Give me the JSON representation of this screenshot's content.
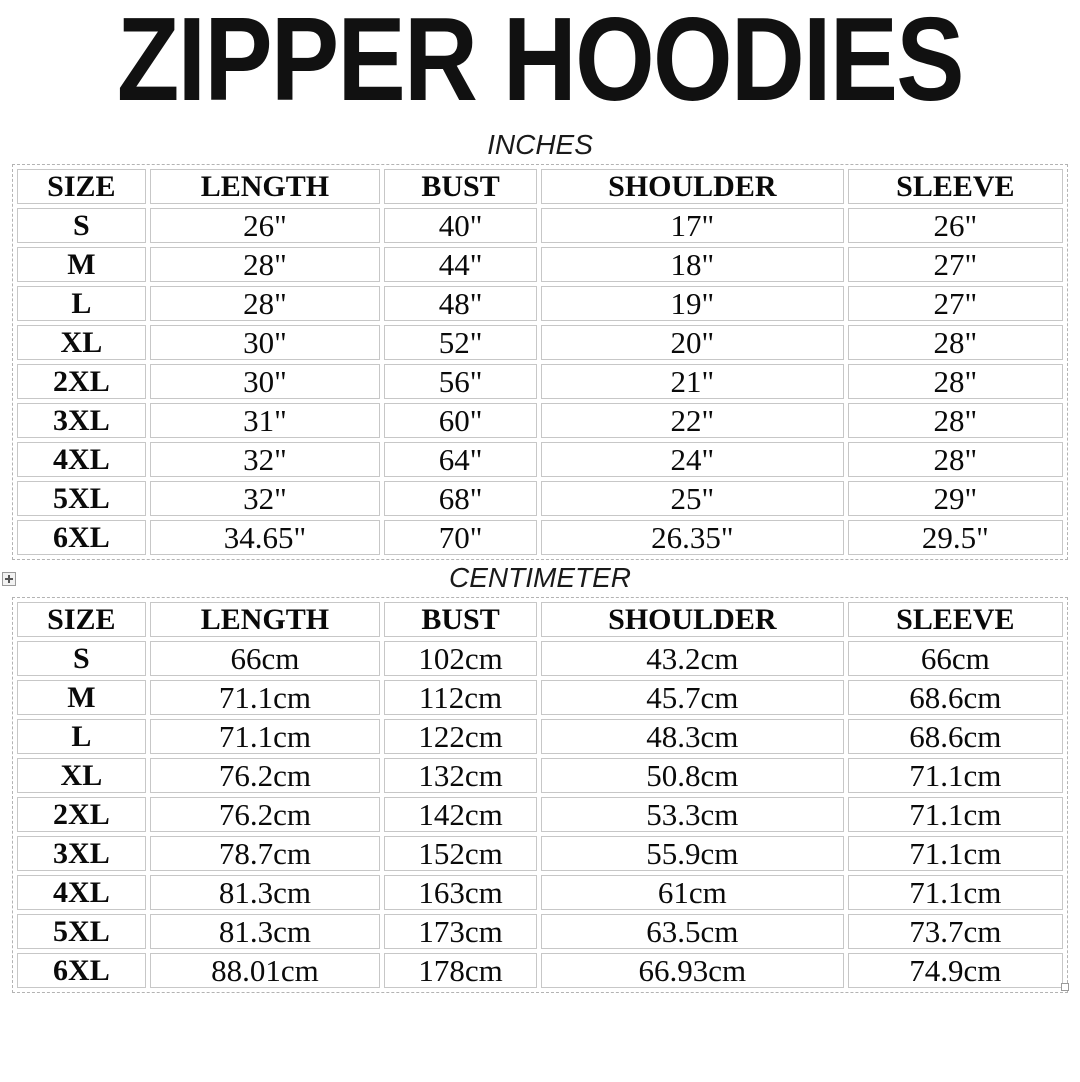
{
  "page": {
    "title": "ZIPPER HOODIES"
  },
  "colors": {
    "background": "#ffffff",
    "text": "#0a0a0a",
    "cell_border": "#c7c7c7",
    "table_dashed_border": "#b3b3b3"
  },
  "icons": {
    "table_move_handle": "plus-cross",
    "table_resize_handle": "small-square"
  },
  "tables": [
    {
      "caption": "INCHES",
      "headers": [
        "SIZE",
        "LENGTH",
        "BUST",
        "SHOULDER",
        "SLEEVE"
      ],
      "rows": [
        [
          "S",
          "26\"",
          "40\"",
          "17\"",
          "26\""
        ],
        [
          "M",
          "28\"",
          "44\"",
          "18\"",
          "27\""
        ],
        [
          "L",
          "28\"",
          "48\"",
          "19\"",
          "27\""
        ],
        [
          "XL",
          "30\"",
          "52\"",
          "20\"",
          "28\""
        ],
        [
          "2XL",
          "30\"",
          "56\"",
          "21\"",
          "28\""
        ],
        [
          "3XL",
          "31\"",
          "60\"",
          "22\"",
          "28\""
        ],
        [
          "4XL",
          "32\"",
          "64\"",
          "24\"",
          "28\""
        ],
        [
          "5XL",
          "32\"",
          "68\"",
          "25\"",
          "29\""
        ],
        [
          "6XL",
          "34.65\"",
          "70\"",
          "26.35\"",
          "29.5\""
        ]
      ]
    },
    {
      "caption": "CENTIMETER",
      "headers": [
        "SIZE",
        "LENGTH",
        "BUST",
        "SHOULDER",
        "SLEEVE"
      ],
      "rows": [
        [
          "S",
          "66cm",
          "102cm",
          "43.2cm",
          "66cm"
        ],
        [
          "M",
          "71.1cm",
          "112cm",
          "45.7cm",
          "68.6cm"
        ],
        [
          "L",
          "71.1cm",
          "122cm",
          "48.3cm",
          "68.6cm"
        ],
        [
          "XL",
          "76.2cm",
          "132cm",
          "50.8cm",
          "71.1cm"
        ],
        [
          "2XL",
          "76.2cm",
          "142cm",
          "53.3cm",
          "71.1cm"
        ],
        [
          "3XL",
          "78.7cm",
          "152cm",
          "55.9cm",
          "71.1cm"
        ],
        [
          "4XL",
          "81.3cm",
          "163cm",
          "61cm",
          "71.1cm"
        ],
        [
          "5XL",
          "81.3cm",
          "173cm",
          "63.5cm",
          "73.7cm"
        ],
        [
          "6XL",
          "88.01cm",
          "178cm",
          "66.93cm",
          "74.9cm"
        ]
      ]
    }
  ]
}
